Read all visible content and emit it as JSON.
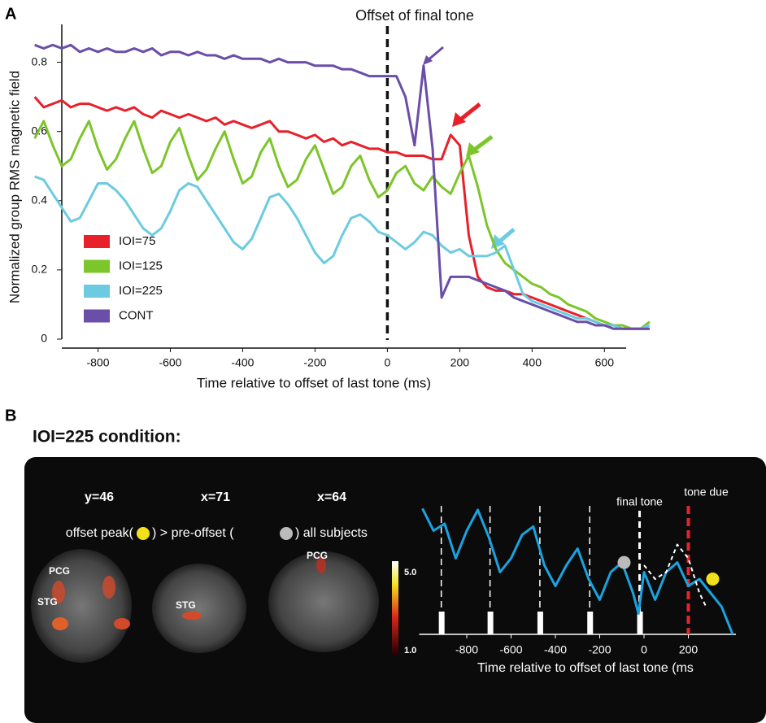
{
  "chart_data": [
    {
      "type": "line",
      "annotation": "Offset of final tone",
      "xlabel": "Time relative to offset of last tone (ms)",
      "ylabel": "Normalized group RMS magnetic field",
      "xlim": [
        -900,
        660
      ],
      "ylim": [
        0,
        0.9
      ],
      "xticks": [
        -800,
        -600,
        -400,
        -200,
        0,
        200,
        400,
        600
      ],
      "yticks": [
        0,
        0.2,
        0.4,
        0.6,
        0.8
      ],
      "vline": 0,
      "legend": "lower left",
      "x": [
        -975,
        -950,
        -925,
        -900,
        -875,
        -850,
        -825,
        -800,
        -775,
        -750,
        -725,
        -700,
        -675,
        -650,
        -625,
        -600,
        -575,
        -550,
        -525,
        -500,
        -475,
        -450,
        -425,
        -400,
        -375,
        -350,
        -325,
        -300,
        -275,
        -250,
        -225,
        -200,
        -175,
        -150,
        -125,
        -100,
        -75,
        -50,
        -25,
        0,
        25,
        50,
        75,
        100,
        125,
        150,
        175,
        200,
        225,
        250,
        275,
        300,
        325,
        350,
        375,
        400,
        425,
        450,
        475,
        500,
        525,
        550,
        575,
        600,
        625,
        650,
        675,
        700,
        725
      ],
      "series": [
        {
          "name": "IOI=75",
          "color": "#e8202a",
          "values": [
            0.7,
            0.67,
            0.68,
            0.69,
            0.67,
            0.68,
            0.68,
            0.67,
            0.66,
            0.67,
            0.66,
            0.67,
            0.65,
            0.64,
            0.66,
            0.65,
            0.64,
            0.65,
            0.64,
            0.63,
            0.64,
            0.62,
            0.63,
            0.62,
            0.61,
            0.62,
            0.63,
            0.6,
            0.6,
            0.59,
            0.58,
            0.59,
            0.57,
            0.58,
            0.56,
            0.57,
            0.56,
            0.55,
            0.55,
            0.54,
            0.54,
            0.53,
            0.53,
            0.53,
            0.52,
            0.52,
            0.59,
            0.56,
            0.3,
            0.18,
            0.15,
            0.14,
            0.14,
            0.13,
            0.13,
            0.12,
            0.11,
            0.1,
            0.09,
            0.08,
            0.07,
            0.06,
            0.05,
            0.04,
            0.04,
            0.03,
            0.03,
            0.03,
            0.03
          ]
        },
        {
          "name": "IOI=125",
          "color": "#7cc52a",
          "values": [
            0.58,
            0.63,
            0.56,
            0.5,
            0.52,
            0.58,
            0.63,
            0.55,
            0.49,
            0.52,
            0.58,
            0.63,
            0.55,
            0.48,
            0.5,
            0.57,
            0.61,
            0.53,
            0.46,
            0.49,
            0.55,
            0.6,
            0.52,
            0.45,
            0.47,
            0.54,
            0.58,
            0.5,
            0.44,
            0.46,
            0.52,
            0.56,
            0.49,
            0.42,
            0.44,
            0.5,
            0.53,
            0.46,
            0.41,
            0.43,
            0.48,
            0.5,
            0.45,
            0.43,
            0.47,
            0.44,
            0.42,
            0.48,
            0.53,
            0.44,
            0.33,
            0.26,
            0.22,
            0.2,
            0.18,
            0.16,
            0.15,
            0.13,
            0.12,
            0.1,
            0.09,
            0.08,
            0.06,
            0.05,
            0.04,
            0.04,
            0.03,
            0.03,
            0.05
          ]
        },
        {
          "name": "IOI=225",
          "color": "#6ccbe0",
          "values": [
            0.47,
            0.46,
            0.42,
            0.38,
            0.34,
            0.35,
            0.4,
            0.45,
            0.45,
            0.43,
            0.4,
            0.36,
            0.32,
            0.3,
            0.32,
            0.37,
            0.43,
            0.45,
            0.44,
            0.4,
            0.36,
            0.32,
            0.28,
            0.26,
            0.29,
            0.35,
            0.41,
            0.42,
            0.39,
            0.35,
            0.3,
            0.25,
            0.22,
            0.24,
            0.3,
            0.35,
            0.36,
            0.34,
            0.31,
            0.3,
            0.28,
            0.26,
            0.28,
            0.31,
            0.3,
            0.27,
            0.25,
            0.26,
            0.24,
            0.24,
            0.24,
            0.25,
            0.27,
            0.2,
            0.13,
            0.11,
            0.1,
            0.09,
            0.08,
            0.07,
            0.06,
            0.06,
            0.05,
            0.04,
            0.04,
            0.03,
            0.03,
            0.03,
            0.04
          ]
        },
        {
          "name": "CONT",
          "color": "#6a4ea8",
          "values": [
            0.85,
            0.84,
            0.85,
            0.84,
            0.85,
            0.83,
            0.84,
            0.83,
            0.84,
            0.83,
            0.83,
            0.84,
            0.83,
            0.84,
            0.82,
            0.83,
            0.83,
            0.82,
            0.83,
            0.82,
            0.82,
            0.81,
            0.82,
            0.81,
            0.81,
            0.81,
            0.8,
            0.81,
            0.8,
            0.8,
            0.8,
            0.79,
            0.79,
            0.79,
            0.78,
            0.78,
            0.77,
            0.76,
            0.76,
            0.76,
            0.76,
            0.7,
            0.56,
            0.79,
            0.55,
            0.12,
            0.18,
            0.18,
            0.18,
            0.17,
            0.16,
            0.15,
            0.14,
            0.12,
            0.11,
            0.1,
            0.09,
            0.08,
            0.07,
            0.06,
            0.05,
            0.05,
            0.04,
            0.04,
            0.03,
            0.03,
            0.03,
            0.03,
            0.03
          ]
        }
      ]
    },
    {
      "type": "line",
      "panel": "B",
      "title": "IOI=225 condition:",
      "xlabel": "Time relative to offset of last tone (ms",
      "xlim": [
        -1000,
        400
      ],
      "ylim": [
        0,
        1
      ],
      "xticks": [
        -800,
        -600,
        -400,
        -200,
        0,
        200
      ],
      "tone_lines": [
        -915,
        -695,
        -470,
        -245,
        -20
      ],
      "tone_label": "final tone",
      "due_line": 200,
      "due_label": "tone due",
      "series": [
        {
          "color": "#1aa3e0",
          "x": [
            -1000,
            -950,
            -900,
            -850,
            -800,
            -750,
            -700,
            -650,
            -600,
            -550,
            -500,
            -450,
            -400,
            -350,
            -300,
            -250,
            -200,
            -150,
            -100,
            -50,
            -25,
            0,
            50,
            100,
            150,
            200,
            250,
            300,
            350,
            400
          ],
          "values": [
            0.91,
            0.75,
            0.8,
            0.55,
            0.75,
            0.9,
            0.7,
            0.45,
            0.55,
            0.72,
            0.78,
            0.5,
            0.35,
            0.5,
            0.62,
            0.4,
            0.25,
            0.45,
            0.52,
            0.3,
            0.15,
            0.45,
            0.25,
            0.45,
            0.52,
            0.35,
            0.4,
            0.3,
            0.2,
            0.0
          ]
        },
        {
          "color": "#ffffff",
          "x": [
            0,
            50,
            100,
            150,
            200,
            250,
            280
          ],
          "values": [
            0.5,
            0.4,
            0.45,
            0.65,
            0.55,
            0.3,
            0.2
          ]
        }
      ],
      "points": [
        {
          "x": -90,
          "y": 0.52,
          "color": "#bbbbbb"
        },
        {
          "x": 310,
          "y": 0.4,
          "color": "#f2e11a"
        }
      ]
    }
  ],
  "panel_a": "A",
  "brain_panel": {
    "slices": [
      "y=46",
      "x=71",
      "x=64"
    ],
    "caption": [
      "offset peak(",
      ") > pre-offset (",
      ") all subjects"
    ],
    "regions": [
      "PCG",
      "STG",
      "STG",
      "PCG"
    ],
    "colorbar": [
      "5.0",
      "1.0"
    ]
  }
}
